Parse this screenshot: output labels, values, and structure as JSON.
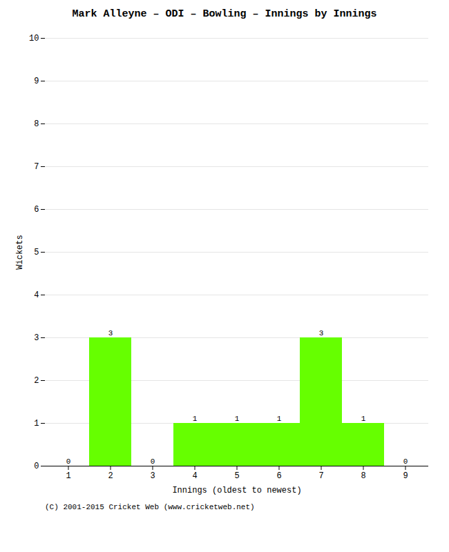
{
  "chart_data": {
    "type": "bar",
    "title": "Mark Alleyne – ODI – Bowling – Innings by Innings",
    "x_label": "Innings (oldest to newest)",
    "y_label": "Wickets",
    "categories": [
      "1",
      "2",
      "3",
      "4",
      "5",
      "6",
      "7",
      "8",
      "9"
    ],
    "values": [
      0,
      3,
      0,
      1,
      1,
      1,
      3,
      1,
      0
    ],
    "color": "#66ff00",
    "ylim": [
      0,
      10
    ],
    "yticks": [
      0,
      1,
      2,
      3,
      4,
      5,
      6,
      7,
      8,
      9,
      10
    ],
    "grid": true,
    "data_labels": true,
    "caption": "(C) 2001-2015 Cricket Web (www.cricketweb.net)"
  }
}
